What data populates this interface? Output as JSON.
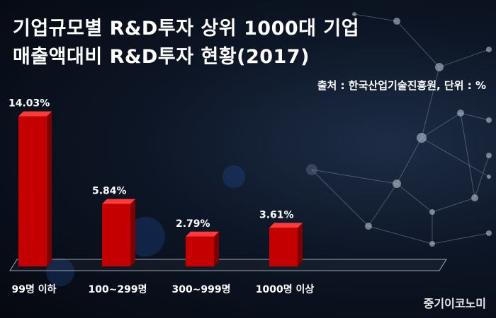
{
  "title_line1": "기업규모별 R&D투자 상위 1000대 기업",
  "title_line2": "매출액대비 R&D투자 현황(2017)",
  "source": "출처 : 한국산업기술진흥원, 단위 : %",
  "brand": "중기이코노미",
  "colors": {
    "bar": "#c40000",
    "bar_top": "#ff3a3a",
    "bar_side": "#7e0000",
    "text": "#ffffff"
  },
  "chart_data": {
    "type": "bar",
    "title": "기업규모별 R&D투자 상위 1000대 기업 매출액대비 R&D투자 현황(2017)",
    "categories": [
      "99명 이하",
      "100~299명",
      "300~999명",
      "1000명 이상"
    ],
    "values": [
      14.03,
      5.84,
      2.79,
      3.61
    ],
    "data_labels": [
      "14.03%",
      "5.84%",
      "2.79%",
      "3.61%"
    ],
    "ylim": [
      0,
      15
    ],
    "grid": false,
    "legend": "none"
  }
}
